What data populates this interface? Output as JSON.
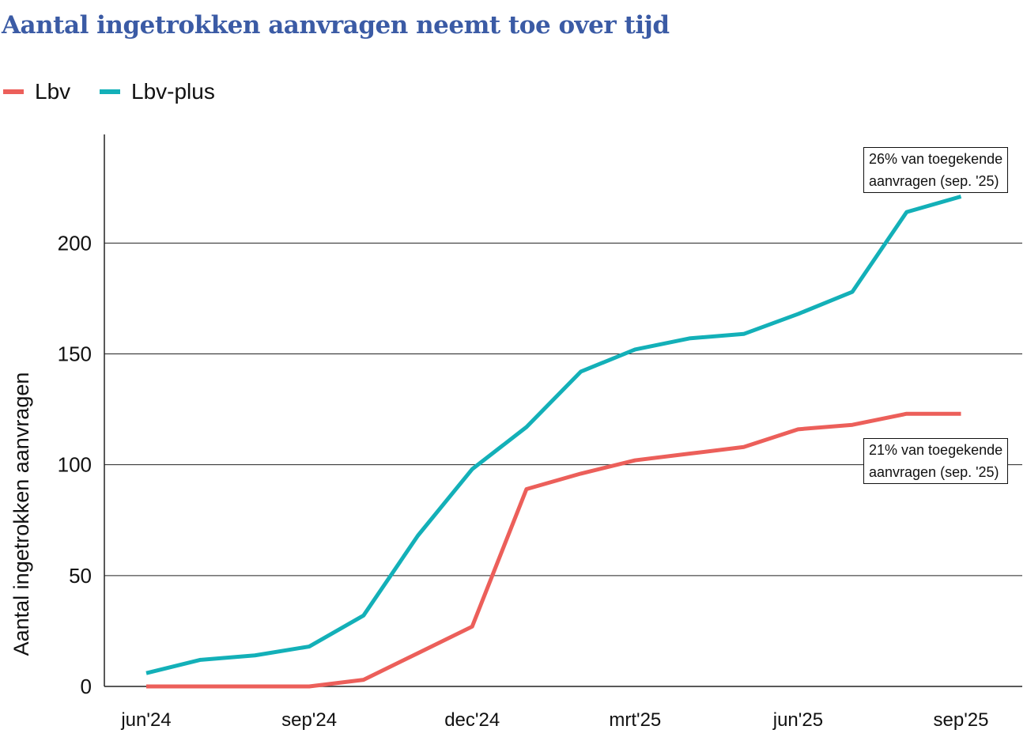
{
  "chart_data": {
    "type": "line",
    "title": "Aantal ingetrokken aanvragen neemt toe over tijd",
    "xlabel": "",
    "ylabel": "Aantal ingetrokken aanvragen",
    "ylim": [
      0,
      249
    ],
    "grid": "horizontal",
    "legend": "top-left",
    "x": [
      "jun'24",
      "jul'24",
      "aug'24",
      "sep'24",
      "okt'24",
      "nov'24",
      "dec'24",
      "jan'25",
      "feb'25",
      "mrt'25",
      "apr'25",
      "mei'25",
      "jun'25",
      "jul'25",
      "aug'25",
      "sep'25"
    ],
    "x_tick_labels": [
      "jun'24",
      "sep'24",
      "dec'24",
      "mrt'25",
      "jun'25",
      "sep'25"
    ],
    "y_ticks": [
      0,
      50,
      100,
      150,
      200
    ],
    "series": [
      {
        "name": "Lbv",
        "color": "#ec5f5a",
        "values": [
          0,
          0,
          0,
          0,
          3,
          15,
          27,
          89,
          96,
          102,
          105,
          108,
          116,
          118,
          123,
          123
        ]
      },
      {
        "name": "Lbv-plus",
        "color": "#13b0b8",
        "values": [
          6,
          12,
          14,
          18,
          32,
          68,
          98,
          117,
          142,
          152,
          157,
          159,
          168,
          178,
          214,
          221
        ]
      }
    ],
    "annotations": [
      {
        "series": "Lbv-plus",
        "line1": "26% van toegekende",
        "line2": "aanvragen (sep. '25)"
      },
      {
        "series": "Lbv",
        "line1": "21% van toegekende",
        "line2": "aanvragen (sep. '25)"
      }
    ]
  }
}
